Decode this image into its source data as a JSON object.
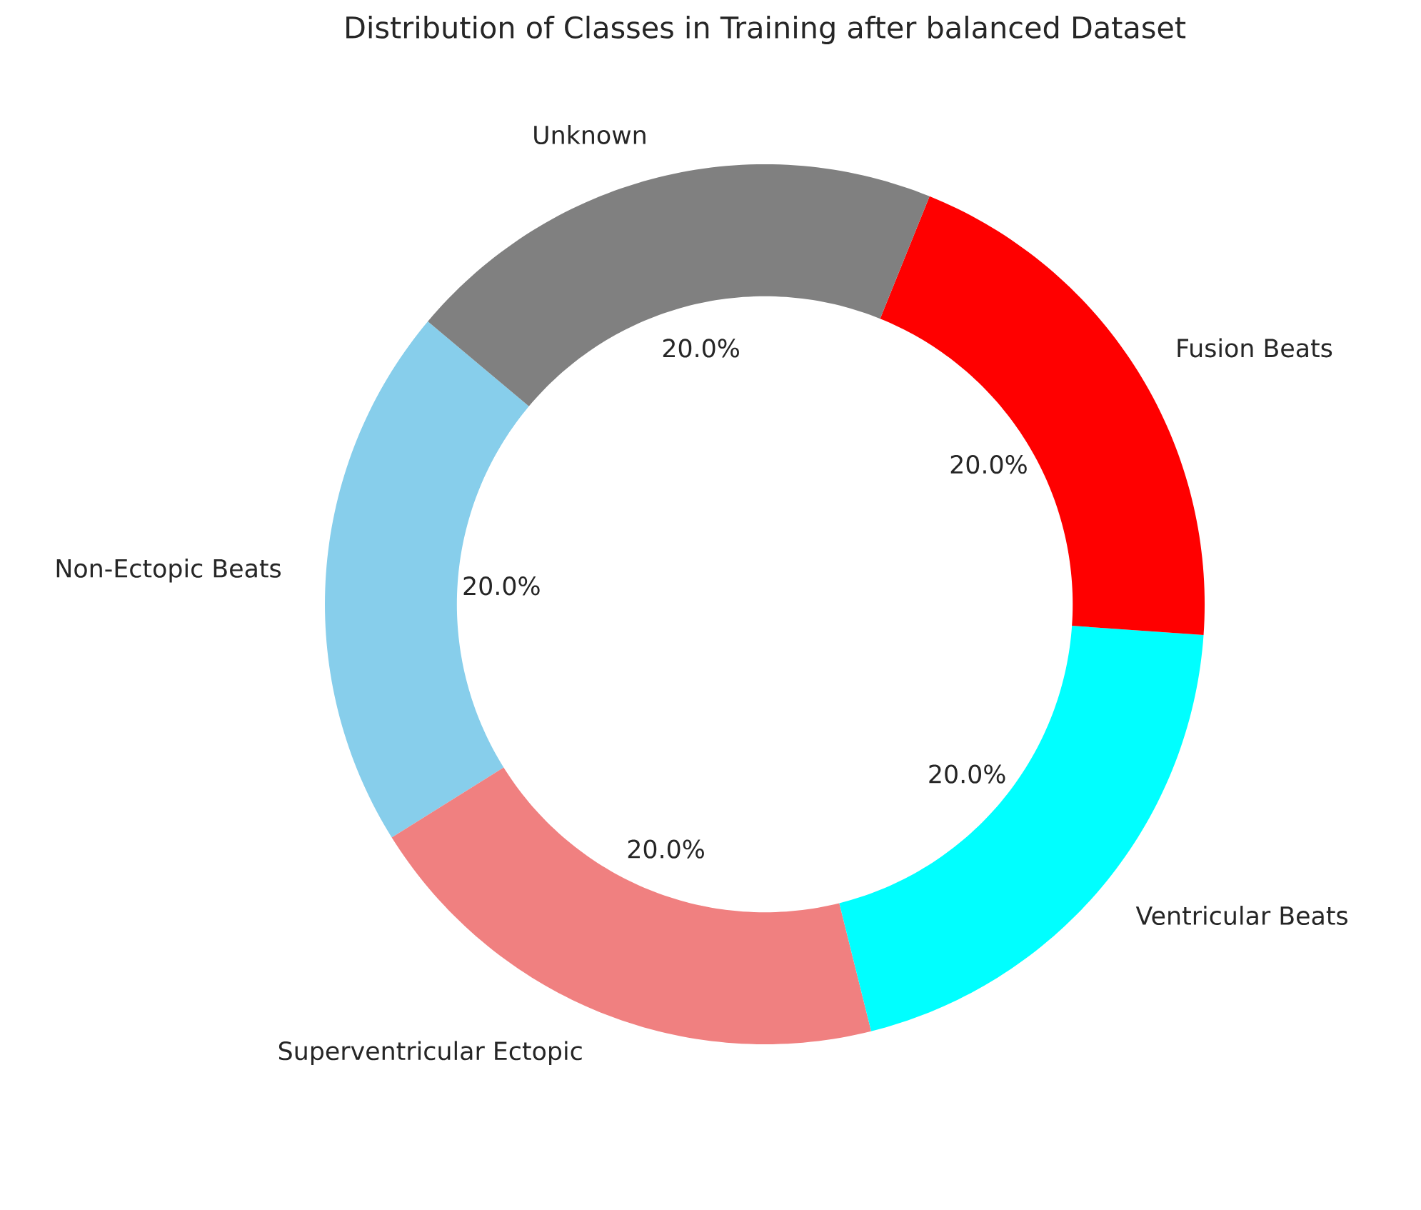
{
  "chart_data": {
    "type": "donut",
    "title": "Distribution of Classes in Training after balanced Dataset",
    "categories": [
      "Non-Ectopic Beats",
      "Superventricular Ectopic",
      "Ventricular Beats",
      "Fusion Beats",
      "Unknown"
    ],
    "values": [
      20,
      20,
      20,
      20,
      20
    ],
    "colors": [
      "#87ceeb",
      "#f08080",
      "#00ffff",
      "#ff0000",
      "#808080"
    ],
    "value_labels": [
      "20.0%",
      "20.0%",
      "20.0%",
      "20.0%",
      "20.0%"
    ]
  }
}
